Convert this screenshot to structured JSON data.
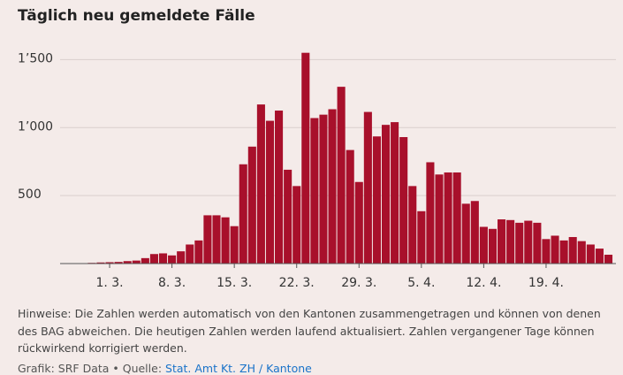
{
  "chart_data": {
    "type": "bar",
    "title": "Täglich neu gemeldete Fälle",
    "categories": [
      null,
      null,
      null,
      null,
      null,
      "1. 3.",
      null,
      null,
      null,
      null,
      null,
      null,
      "8. 3.",
      null,
      null,
      null,
      null,
      null,
      null,
      "15. 3.",
      null,
      null,
      null,
      null,
      null,
      null,
      "22. 3.",
      null,
      null,
      null,
      null,
      null,
      null,
      "29. 3.",
      null,
      null,
      null,
      null,
      null,
      null,
      "5. 4.",
      null,
      null,
      null,
      null,
      null,
      null,
      "12. 4.",
      null,
      null,
      null,
      null,
      null,
      null,
      "19. 4.",
      null,
      null,
      null,
      null,
      null,
      null,
      null
    ],
    "values": [
      1,
      2,
      3,
      5,
      8,
      10,
      12,
      18,
      22,
      40,
      70,
      75,
      60,
      90,
      140,
      170,
      355,
      355,
      340,
      275,
      730,
      860,
      1170,
      1050,
      1125,
      690,
      570,
      1550,
      1070,
      1095,
      1135,
      1300,
      835,
      600,
      1115,
      935,
      1020,
      1040,
      930,
      570,
      385,
      745,
      655,
      670,
      670,
      440,
      460,
      270,
      255,
      325,
      320,
      300,
      315,
      300,
      180,
      205,
      170,
      195,
      165,
      140,
      110,
      65
    ],
    "color": "#a8102b",
    "ylim": [
      0,
      1600
    ],
    "yticks": [
      500,
      {
        "value": 1000,
        "label": "1’000"
      },
      {
        "value": 1500,
        "label": "1’500"
      }
    ],
    "grid": true
  },
  "notes": {
    "text": "Hinweise: Die Zahlen werden automatisch von den Kantonen zusammengetragen und können von denen des BAG abweichen. Die heutigen Zahlen werden laufend aktualisiert. Zahlen vergangener Tage können rückwirkend korrigiert werden.",
    "source_prefix": "Grafik: SRF Data • Quelle:",
    "source_link": "Stat. Amt Kt. ZH / Kantone"
  }
}
